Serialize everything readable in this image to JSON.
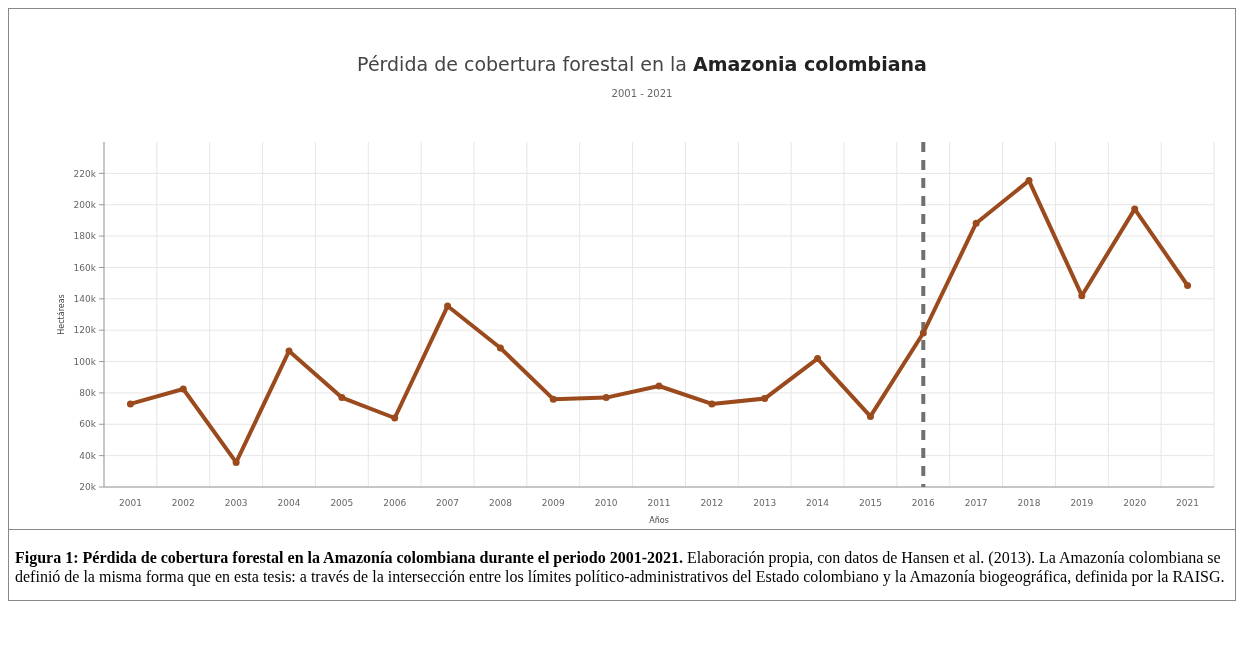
{
  "chart_data": {
    "type": "line",
    "title": "Pérdida de cobertura forestal en la Amazonia colombiana",
    "subtitle": "2001 - 2021",
    "xlabel": "Años",
    "ylabel": "Hectáreas",
    "categories": [
      "2001",
      "2002",
      "2003",
      "2004",
      "2005",
      "2006",
      "2007",
      "2008",
      "2009",
      "2010",
      "2011",
      "2012",
      "2013",
      "2014",
      "2015",
      "2016",
      "2017",
      "2018",
      "2019",
      "2020",
      "2021"
    ],
    "series": [
      {
        "color": "#9a4a1c",
        "values": [
          73000,
          82500,
          35700,
          106700,
          77000,
          64000,
          135400,
          108600,
          76000,
          77000,
          84400,
          73000,
          76400,
          101900,
          65000,
          118200,
          188200,
          215400,
          142000,
          197200,
          148500
        ]
      }
    ],
    "ylim": [
      20000,
      240000
    ],
    "yticks": [
      {
        "value": 20000,
        "label": "20k"
      },
      {
        "value": 40000,
        "label": "40k"
      },
      {
        "value": 60000,
        "label": "60k"
      },
      {
        "value": 80000,
        "label": "80k"
      },
      {
        "value": 100000,
        "label": "100k"
      },
      {
        "value": 120000,
        "label": "120k"
      },
      {
        "value": 140000,
        "label": "140k"
      },
      {
        "value": 160000,
        "label": "160k"
      },
      {
        "value": 180000,
        "label": "180k"
      },
      {
        "value": 200000,
        "label": "200k"
      },
      {
        "value": 220000,
        "label": "220k"
      }
    ],
    "ref_lines": [
      {
        "axis": "x",
        "value": "2016",
        "color": "#707070",
        "line_style": "dashed"
      }
    ],
    "grid": true,
    "marker": "circle",
    "line_style": "solid",
    "annotations": [
      "Figura 1: Pérdida de cobertura forestal en la Amazonía colombiana durante el periodo 2001-2021.",
      "Elaboración propia, con datos de Hansen et al. (2013). La Amazonía colombiana se definió de la misma forma que en esta tesis: a través de la intersección entre los límites político-administrativos del Estado colombiano y la Amazonía biogeográfica, definida por la RAISG."
    ]
  }
}
